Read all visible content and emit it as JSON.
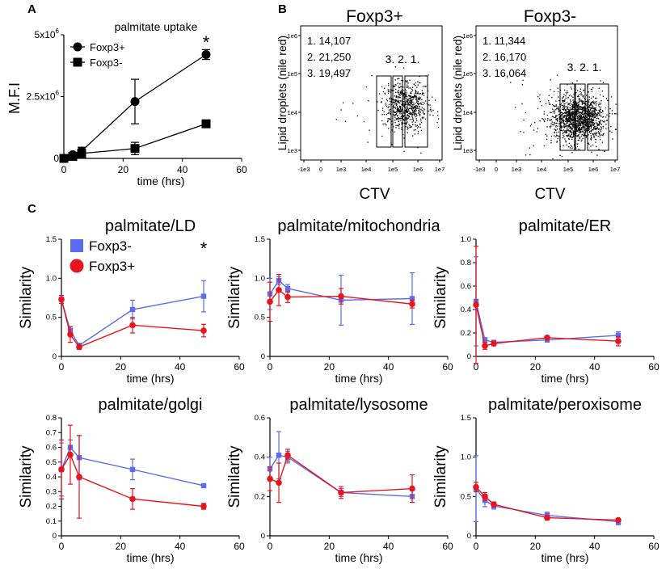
{
  "panel_labels": {
    "a": "A",
    "b": "B",
    "c": "C"
  },
  "colors": {
    "foxp3_minus": "#5b6cf0",
    "foxp3_plus": "#e8141c",
    "black": "#000000",
    "gate": "#000000"
  },
  "chart_data": [
    {
      "id": "A",
      "type": "line",
      "title": "palmitate uptake",
      "xlabel": "time (hrs)",
      "ylabel": "M.F.I",
      "xlim": [
        0,
        60
      ],
      "ylim": [
        0,
        5000000
      ],
      "xticks": [
        0,
        20,
        40,
        60
      ],
      "yticks": [
        0,
        2500000,
        5000000
      ],
      "ytick_labels": [
        {
          "value": 0,
          "base": "0",
          "exp": ""
        },
        {
          "value": 2500000,
          "base": "2.5x10",
          "exp": "6"
        },
        {
          "value": 5000000,
          "base": "5x10",
          "exp": "6"
        }
      ],
      "annotation": "*",
      "series": [
        {
          "name": "Foxp3+",
          "marker": "circle",
          "x": [
            0,
            3,
            6,
            24,
            48
          ],
          "y": [
            0,
            150000,
            300000,
            2300000,
            4200000
          ],
          "err": [
            0,
            50000,
            150000,
            900000,
            200000
          ]
        },
        {
          "name": "Foxp3-",
          "marker": "square",
          "x": [
            0,
            3,
            6,
            24,
            48
          ],
          "y": [
            0,
            80000,
            200000,
            400000,
            1400000
          ],
          "err": [
            0,
            40000,
            150000,
            250000,
            60000
          ]
        }
      ]
    },
    {
      "id": "B1",
      "type": "scatter",
      "title": "Foxp3+",
      "xlabel": "CTV",
      "ylabel": "Lipid droplets (nile red)",
      "xticks": [
        "-1e3",
        "0",
        "1e3",
        "1e4",
        "1e5",
        "1e6",
        "1e7"
      ],
      "yticks": [
        "1e3",
        "1e4",
        "1e5",
        "1e6"
      ],
      "gates": [
        {
          "id": "1",
          "label": "1. 14,107"
        },
        {
          "id": "2",
          "label": "2. 21,250"
        },
        {
          "id": "3",
          "label": "3. 19,497"
        }
      ],
      "gate_tags": "3. 2. 1."
    },
    {
      "id": "B2",
      "type": "scatter",
      "title": "Foxp3-",
      "xlabel": "CTV",
      "ylabel": "Lipid droplets (nile red)",
      "xticks": [
        "-1e3",
        "0",
        "1e3",
        "1e4",
        "1e5",
        "1e6",
        "1e7"
      ],
      "yticks": [
        "1e3",
        "1e4",
        "1e5",
        "1e6"
      ],
      "gates": [
        {
          "id": "1",
          "label": "1. 11,344"
        },
        {
          "id": "2",
          "label": "2. 16,170"
        },
        {
          "id": "3",
          "label": "3. 16,064"
        }
      ],
      "gate_tags": "3. 2. 1."
    },
    {
      "id": "C1",
      "type": "line",
      "title": "palmitate/LD",
      "xlabel": "time (hrs)",
      "ylabel": "Similarity",
      "xlim": [
        0,
        60
      ],
      "ylim": [
        0,
        1.5
      ],
      "xticks": [
        0,
        20,
        40,
        60
      ],
      "yticks": [
        "0",
        "0.5",
        "1.0",
        "1.5"
      ],
      "annotation": "*",
      "legend": [
        "Foxp3-",
        "Foxp3+"
      ],
      "series": [
        {
          "name": "Foxp3-",
          "x": [
            0,
            3,
            6,
            24,
            48
          ],
          "y": [
            0.73,
            0.33,
            0.14,
            0.6,
            0.77
          ],
          "err": [
            0.05,
            0.05,
            0.03,
            0.12,
            0.2
          ]
        },
        {
          "name": "Foxp3+",
          "x": [
            0,
            3,
            6,
            24,
            48
          ],
          "y": [
            0.73,
            0.28,
            0.12,
            0.4,
            0.33
          ],
          "err": [
            0.05,
            0.1,
            0.03,
            0.1,
            0.08
          ]
        }
      ]
    },
    {
      "id": "C2",
      "type": "line",
      "title": "palmitate/mitochondria",
      "xlabel": "time (hrs)",
      "ylabel": "Similarity",
      "xlim": [
        0,
        60
      ],
      "ylim": [
        0,
        1.5
      ],
      "xticks": [
        0,
        20,
        40,
        60
      ],
      "yticks": [
        "0",
        "0.5",
        "1.0",
        "1.5"
      ],
      "series": [
        {
          "name": "Foxp3-",
          "x": [
            0,
            3,
            6,
            24,
            48
          ],
          "y": [
            0.8,
            0.97,
            0.87,
            0.72,
            0.74
          ],
          "err": [
            0.2,
            0.05,
            0.05,
            0.32,
            0.33
          ]
        },
        {
          "name": "Foxp3+",
          "x": [
            0,
            3,
            6,
            24,
            48
          ],
          "y": [
            0.7,
            0.85,
            0.76,
            0.77,
            0.67
          ],
          "err": [
            0.25,
            0.2,
            0.07,
            0.1,
            0.05
          ]
        }
      ]
    },
    {
      "id": "C3",
      "type": "line",
      "title": "palmitate/ER",
      "xlabel": "time (hrs)",
      "ylabel": "Similarity",
      "xlim": [
        0,
        60
      ],
      "ylim": [
        0,
        1.0
      ],
      "xticks": [
        0,
        20,
        40,
        60
      ],
      "yticks": [
        "0",
        "0.2",
        "0.4",
        "0.6",
        "0.8",
        "1.0"
      ],
      "series": [
        {
          "name": "Foxp3-",
          "x": [
            0,
            3,
            6,
            24,
            48
          ],
          "y": [
            0.47,
            0.14,
            0.12,
            0.14,
            0.18
          ],
          "err": [
            0.38,
            0.02,
            0.01,
            0.01,
            0.03
          ]
        },
        {
          "name": "Foxp3+",
          "x": [
            0,
            3,
            6,
            24,
            48
          ],
          "y": [
            0.44,
            0.09,
            0.11,
            0.16,
            0.13
          ],
          "err": [
            0.5,
            0.03,
            0.02,
            0.01,
            0.04
          ]
        }
      ]
    },
    {
      "id": "C4",
      "type": "line",
      "title": "palmitate/golgi",
      "xlabel": "time (hrs)",
      "ylabel": "Similarity",
      "xlim": [
        0,
        60
      ],
      "ylim": [
        0,
        0.8
      ],
      "xticks": [
        0,
        20,
        40,
        60
      ],
      "yticks": [
        "0",
        "0.1",
        "0.2",
        "0.3",
        "0.4",
        "0.5",
        "0.6",
        "0.7",
        "0.8"
      ],
      "series": [
        {
          "name": "Foxp3-",
          "x": [
            0,
            3,
            6,
            24,
            48
          ],
          "y": [
            0.45,
            0.6,
            0.53,
            0.45,
            0.34
          ],
          "err": [
            0.18,
            0.05,
            0.15,
            0.07,
            0.0
          ]
        },
        {
          "name": "Foxp3+",
          "x": [
            0,
            3,
            6,
            24,
            48
          ],
          "y": [
            0.45,
            0.55,
            0.4,
            0.25,
            0.2
          ],
          "err": [
            0.2,
            0.2,
            0.28,
            0.07,
            0.02
          ]
        }
      ]
    },
    {
      "id": "C5",
      "type": "line",
      "title": "palmitate/lysosome",
      "xlabel": "time (hrs)",
      "ylabel": "Similarity",
      "xlim": [
        0,
        60
      ],
      "ylim": [
        0,
        0.6
      ],
      "xticks": [
        0,
        20,
        40,
        60
      ],
      "yticks": [
        "0",
        "0.2",
        "0.4",
        "0.6"
      ],
      "series": [
        {
          "name": "Foxp3-",
          "x": [
            0,
            3,
            6,
            24,
            48
          ],
          "y": [
            0.34,
            0.41,
            0.4,
            0.22,
            0.2
          ],
          "err": [
            0.06,
            0.12,
            0.03,
            0.02,
            0.03
          ]
        },
        {
          "name": "Foxp3+",
          "x": [
            0,
            3,
            6,
            24,
            48
          ],
          "y": [
            0.29,
            0.27,
            0.41,
            0.22,
            0.24
          ],
          "err": [
            0.06,
            0.1,
            0.03,
            0.03,
            0.07
          ]
        }
      ]
    },
    {
      "id": "C6",
      "type": "line",
      "title": "palmitate/peroxisome",
      "xlabel": "time (hrs)",
      "ylabel": "Similarity",
      "xlim": [
        0,
        60
      ],
      "ylim": [
        0,
        1.5
      ],
      "xticks": [
        0,
        20,
        40,
        60
      ],
      "yticks": [
        "0",
        "0.5",
        "1.0",
        "1.5"
      ],
      "series": [
        {
          "name": "Foxp3-",
          "x": [
            0,
            3,
            6,
            24,
            48
          ],
          "y": [
            0.6,
            0.45,
            0.38,
            0.26,
            0.18
          ],
          "err": [
            0.42,
            0.08,
            0.04,
            0.04,
            0.04
          ]
        },
        {
          "name": "Foxp3+",
          "x": [
            0,
            3,
            6,
            24,
            48
          ],
          "y": [
            0.62,
            0.5,
            0.4,
            0.23,
            0.2
          ],
          "err": [
            0.06,
            0.05,
            0.03,
            0.03,
            0.02
          ]
        }
      ]
    }
  ]
}
